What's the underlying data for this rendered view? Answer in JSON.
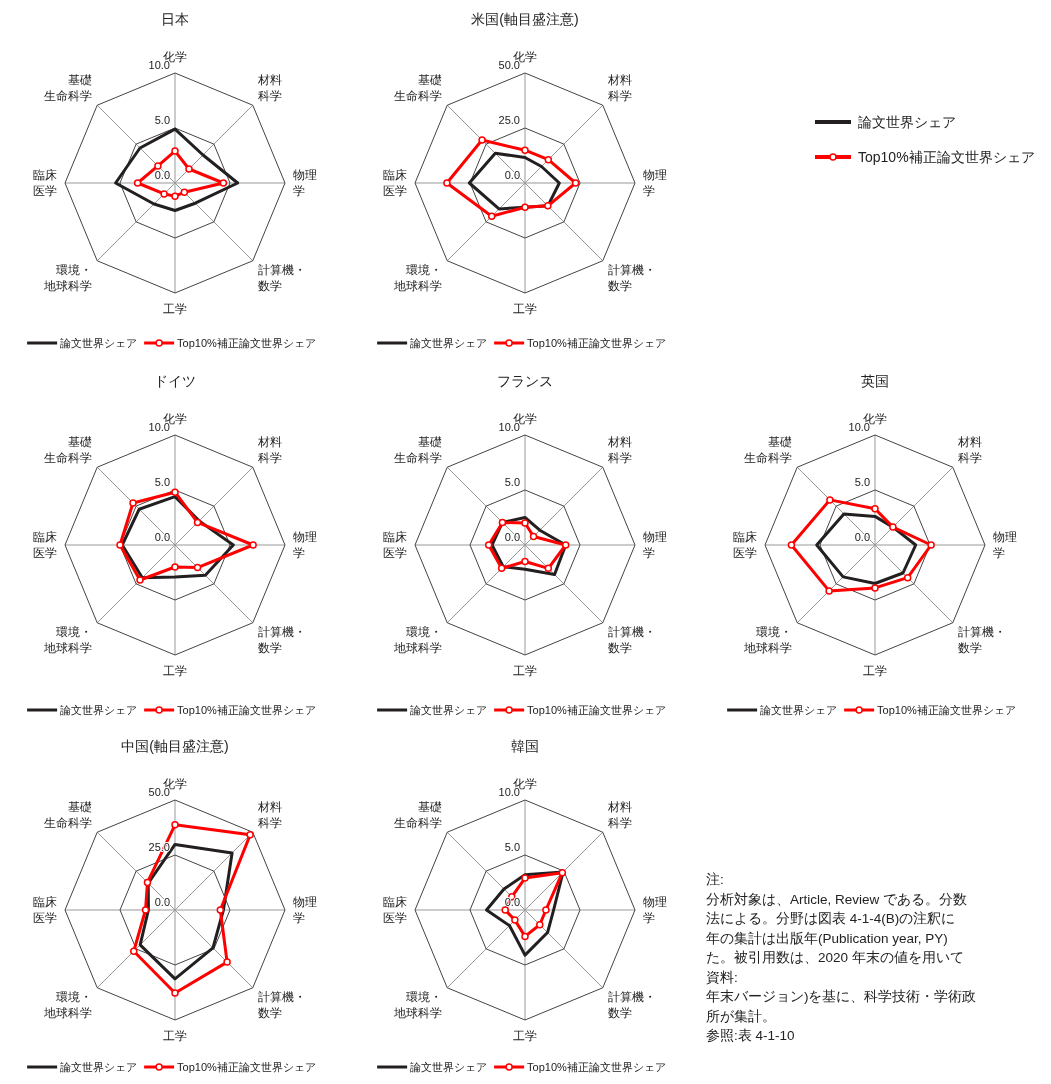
{
  "chart_data": [
    {
      "type": "radar",
      "title": "日本",
      "categories": [
        "化学",
        "材料科学",
        "物理学",
        "計算機・数学",
        "工学",
        "環境・地球科学",
        "臨床医学",
        "基礎生命科学"
      ],
      "ylim": [
        0,
        10
      ],
      "yticks": [
        {
          "value": 0,
          "label": "0.0"
        },
        {
          "value": 5,
          "label": "5.0"
        },
        {
          "value": 10,
          "label": "10.0"
        }
      ],
      "grid": true,
      "legend": "bottom",
      "series": [
        {
          "name": "論文世界シェア",
          "color": "#231f20",
          "marker": "none",
          "values": [
            4.9,
            3.6,
            5.7,
            2.6,
            2.5,
            2.7,
            5.4,
            4.5
          ]
        },
        {
          "name": "Top10%補正論文世界シェア",
          "color": "#ff0000",
          "marker": "circle",
          "values": [
            2.9,
            1.8,
            4.4,
            1.2,
            1.2,
            1.4,
            3.4,
            2.2
          ]
        }
      ]
    },
    {
      "type": "radar",
      "title": "米国(軸目盛注意)",
      "categories": [
        "化学",
        "材料科学",
        "物理学",
        "計算機・数学",
        "工学",
        "環境・地球科学",
        "臨床医学",
        "基礎生命科学"
      ],
      "ylim": [
        0,
        50
      ],
      "yticks": [
        {
          "value": 0,
          "label": "0.0"
        },
        {
          "value": 25,
          "label": "25.0"
        },
        {
          "value": 50,
          "label": "50.0"
        }
      ],
      "grid": true,
      "legend": "bottom",
      "series": [
        {
          "name": "論文世界シェア",
          "color": "#231f20",
          "marker": "none",
          "values": [
            11.6,
            10.6,
            15.6,
            14.7,
            11.0,
            16.7,
            25.3,
            19.1
          ]
        },
        {
          "name": "Top10%補正論文世界シェア",
          "color": "#ff0000",
          "marker": "circle",
          "values": [
            14.9,
            15.0,
            23.0,
            14.7,
            11.0,
            21.4,
            35.5,
            27.6
          ]
        }
      ]
    },
    {
      "type": "other",
      "legend": "top right",
      "series": [
        {
          "name": "論文世界シェア",
          "color": "#231f20",
          "marker": "none"
        },
        {
          "name": "Top10%補正論文世界シェア",
          "color": "#ff0000",
          "marker": "circle"
        }
      ]
    },
    {
      "type": "radar",
      "title": "ドイツ",
      "categories": [
        "化学",
        "材料科学",
        "物理学",
        "計算機・数学",
        "工学",
        "環境・地球科学",
        "臨床医学",
        "基礎生命科学"
      ],
      "ylim": [
        0,
        10
      ],
      "yticks": [
        {
          "value": 0,
          "label": "0.0"
        },
        {
          "value": 5,
          "label": "5.0"
        },
        {
          "value": 10,
          "label": "10.0"
        }
      ],
      "grid": true,
      "legend": "bottom",
      "series": [
        {
          "name": "論文世界シェア",
          "color": "#231f20",
          "marker": "none",
          "values": [
            4.4,
            3.1,
            5.3,
            3.9,
            2.9,
            4.2,
            4.8,
            4.6
          ]
        },
        {
          "name": "Top10%補正論文世界シェア",
          "color": "#ff0000",
          "marker": "circle",
          "values": [
            4.8,
            2.9,
            7.1,
            2.9,
            2.0,
            4.5,
            5.0,
            5.4
          ]
        }
      ]
    },
    {
      "type": "radar",
      "title": "フランス",
      "categories": [
        "化学",
        "材料科学",
        "物理学",
        "計算機・数学",
        "工学",
        "環境・地球科学",
        "臨床医学",
        "基礎生命科学"
      ],
      "ylim": [
        0,
        10
      ],
      "yticks": [
        {
          "value": 0,
          "label": "0.0"
        },
        {
          "value": 5,
          "label": "5.0"
        },
        {
          "value": 10,
          "label": "10.0"
        }
      ],
      "grid": true,
      "legend": "bottom",
      "series": [
        {
          "name": "論文世界シェア",
          "color": "#231f20",
          "marker": "none",
          "values": [
            2.5,
            1.9,
            3.7,
            3.8,
            2.2,
            2.8,
            3.0,
            2.9
          ]
        },
        {
          "name": "Top10%補正論文世界シェア",
          "color": "#ff0000",
          "marker": "circle",
          "values": [
            2.0,
            1.1,
            3.7,
            3.0,
            1.5,
            3.0,
            3.3,
            2.9
          ]
        }
      ]
    },
    {
      "type": "radar",
      "title": "英国",
      "categories": [
        "化学",
        "材料科学",
        "物理学",
        "計算機・数学",
        "工学",
        "環境・地球科学",
        "臨床医学",
        "基礎生命科学"
      ],
      "ylim": [
        0,
        10
      ],
      "yticks": [
        {
          "value": 0,
          "label": "0.0"
        },
        {
          "value": 5,
          "label": "5.0"
        },
        {
          "value": 10,
          "label": "10.0"
        }
      ],
      "grid": true,
      "legend": "bottom",
      "series": [
        {
          "name": "論文世界シェア",
          "color": "#231f20",
          "marker": "none",
          "values": [
            2.6,
            2.3,
            3.7,
            3.6,
            3.5,
            4.1,
            5.3,
            4.0
          ]
        },
        {
          "name": "Top10%補正論文世界シェア",
          "color": "#ff0000",
          "marker": "circle",
          "values": [
            3.3,
            2.3,
            5.1,
            4.2,
            3.9,
            5.9,
            7.6,
            5.8
          ]
        }
      ]
    },
    {
      "type": "radar",
      "title": "中国(軸目盛注意)",
      "categories": [
        "化学",
        "材料科学",
        "物理学",
        "計算機・数学",
        "工学",
        "環境・地球科学",
        "臨床医学",
        "基礎生命科学"
      ],
      "ylim": [
        0,
        50
      ],
      "yticks": [
        {
          "value": 0,
          "label": "0.0"
        },
        {
          "value": 25,
          "label": "25.0"
        },
        {
          "value": 50,
          "label": "50.0"
        }
      ],
      "grid": true,
      "legend": "bottom",
      "series": [
        {
          "name": "論文世界シェア",
          "color": "#231f20",
          "marker": "none",
          "values": [
            29.8,
            36.7,
            22.0,
            24.4,
            31.3,
            22.4,
            12.1,
            17.2
          ]
        },
        {
          "name": "Top10%補正論文世界シェア",
          "color": "#ff0000",
          "marker": "circle",
          "values": [
            38.7,
            48.3,
            20.6,
            33.5,
            37.7,
            26.5,
            13.4,
            17.7
          ]
        }
      ]
    },
    {
      "type": "radar",
      "title": "韓国",
      "categories": [
        "化学",
        "材料科学",
        "物理学",
        "計算機・数学",
        "工学",
        "環境・地球科学",
        "臨床医学",
        "基礎生命科学"
      ],
      "ylim": [
        0,
        10
      ],
      "yticks": [
        {
          "value": 0,
          "label": "0.0"
        },
        {
          "value": 5,
          "label": "5.0"
        },
        {
          "value": 10,
          "label": "10.0"
        }
      ],
      "grid": true,
      "legend": "bottom",
      "series": [
        {
          "name": "論文世界シェア",
          "color": "#231f20",
          "marker": "none",
          "values": [
            3.2,
            4.9,
            2.6,
            2.9,
            4.1,
            2.0,
            3.5,
            2.7
          ]
        },
        {
          "name": "Top10%補正論文世界シェア",
          "color": "#ff0000",
          "marker": "circle",
          "values": [
            2.9,
            4.8,
            1.9,
            1.9,
            2.4,
            1.3,
            1.8,
            1.7
          ]
        }
      ]
    },
    {
      "type": "other",
      "annotations": [
        "注:",
        "分析対象は、Article, Review である。分数",
        "法による。分野は図表 4-1-4(B)の注釈に",
        "年の集計は出版年(Publication year, PY)",
        "た。被引用数は、2020 年末の値を用いて",
        "資料:",
        "年末バージョン)を基に、科学技術・学術政",
        "所が集計。",
        "参照:表 4-1-10"
      ]
    }
  ]
}
